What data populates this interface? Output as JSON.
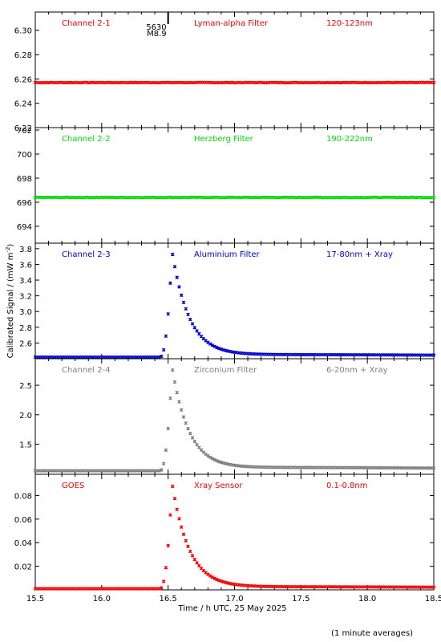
{
  "chart_data": {
    "type": "scatter",
    "ylabel": "Calibrated Signal / (mW m",
    "ylabel_sup": "-2",
    "ylabel_tail": ")",
    "xlabel": "Time / h UTC, 25 May 2025",
    "xlim": [
      15.5,
      18.5
    ],
    "xticks": [
      "15.5",
      "16.0",
      "16.5",
      "17.0",
      "17.5",
      "18.0",
      "18.5"
    ],
    "footnote": "(1 minute averages)",
    "flare_marker": {
      "x": 16.5,
      "labels": [
        "5630",
        "M8.9"
      ]
    },
    "panels": [
      {
        "name": "Channel 2-1",
        "filter": "Lyman-alpha Filter",
        "band": "120-123nm",
        "color": "#ff0000",
        "ylim": [
          6.22,
          6.315
        ],
        "yticks": [
          "6.22",
          "6.24",
          "6.26",
          "6.28",
          "6.30"
        ],
        "baseline": 6.257,
        "peak": null
      },
      {
        "name": "Channel 2-2",
        "filter": "Herzberg Filter",
        "band": "190-222nm",
        "color": "#00dd00",
        "ylim": [
          692.6,
          702.2
        ],
        "yticks": [
          "694",
          "696",
          "698",
          "700",
          "702"
        ],
        "baseline": 696.4,
        "peak": null
      },
      {
        "name": "Channel 2-3",
        "filter": "Aluminium Filter",
        "band": "17-80nm + Xray",
        "color": "#0000cc",
        "ylim": [
          2.4,
          3.87
        ],
        "yticks": [
          "2.6",
          "2.8",
          "3.0",
          "3.2",
          "3.4",
          "3.6",
          "3.8"
        ],
        "baseline": 2.42,
        "peak": 3.76,
        "tail_level": 2.46
      },
      {
        "name": "Channel 2-4",
        "filter": "Zirconium Filter",
        "band": "6-20nm + Xray",
        "color": "#7f7f7f",
        "ylim": [
          0.99,
          2.95
        ],
        "yticks": [
          "1.5",
          "2.0",
          "2.5"
        ],
        "baseline": 1.05,
        "peak": 2.8,
        "tail_level": 1.12
      },
      {
        "name": "GOES",
        "filter": "Xray Sensor",
        "band": "0.1-0.8nm",
        "color": "#ff0000",
        "ylim": [
          0.0,
          0.098
        ],
        "yticks": [
          "0.02",
          "0.04",
          "0.06",
          "0.08"
        ],
        "baseline": 0.001,
        "peak": 0.09,
        "tail_level": 0.003
      }
    ]
  }
}
